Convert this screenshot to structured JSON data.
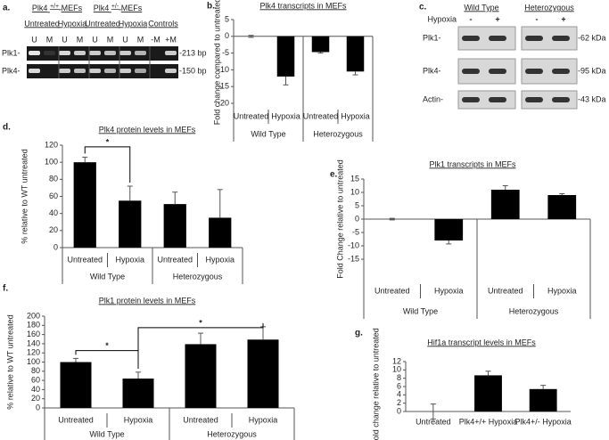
{
  "gels": {
    "a": {
      "panel_label": "a.",
      "headers": [
        {
          "gene": "Plk4",
          "genotype": "+/+",
          "suffix": "MEFs"
        },
        {
          "gene": "Plk4",
          "genotype": "+/-",
          "suffix": "MEFs"
        }
      ],
      "lane_groups": [
        "Untreated",
        "Hypoxia",
        "Untreated",
        "Hypoxia",
        "Controls"
      ],
      "lanes": [
        "U",
        "M",
        "U",
        "M",
        "U",
        "M",
        "U",
        "M",
        "-M",
        "+M"
      ],
      "rows": [
        "Plk1-",
        "Plk4-"
      ],
      "sizes": [
        "-213 bp",
        "-150 bp"
      ]
    },
    "c": {
      "panel_label": "c.",
      "groups": [
        "Wild Type",
        "Heterozygous"
      ],
      "condition": "Hypoxia",
      "lanes": [
        "-",
        "+",
        "-",
        "+"
      ],
      "rows": [
        "Plk1-",
        "Plk4-",
        "Actin-"
      ],
      "sizes": [
        "-62 kDa",
        "-95 kDa",
        "-43 kDa"
      ]
    }
  },
  "chart_data": [
    {
      "type": "bar",
      "panel_label": "b.",
      "title": "Plk4 transcripts in MEFs",
      "y_label": "Fold change compared to untreated",
      "categories": [
        "Untreated",
        "Hypoxia",
        "Untreated",
        "Hypoxia"
      ],
      "groups": [
        "Wild Type",
        "Heterozygous"
      ],
      "values": [
        0,
        -12,
        -4.7,
        -10.5
      ],
      "errors": [
        0.3,
        2.5,
        0.3,
        1
      ],
      "color": "#000000",
      "ylim": [
        -20,
        5
      ],
      "yticks": [
        5,
        0,
        -5,
        -10,
        -15,
        -20
      ]
    },
    {
      "type": "bar",
      "panel_label": "d.",
      "title": "Plk4 protein levels in MEFs",
      "y_label": "% relative to WT untreated",
      "categories": [
        "Untreated",
        "Hypoxia",
        "Untreated",
        "Hypoxia"
      ],
      "groups": [
        "Wild Type",
        "Heterozygous"
      ],
      "values": [
        100,
        55,
        51,
        35
      ],
      "errors": [
        6,
        17,
        14,
        33
      ],
      "color": "#000000",
      "ylim": [
        0,
        120
      ],
      "yticks": [
        0,
        20,
        40,
        60,
        80,
        100,
        120
      ],
      "annotations": [
        "*"
      ]
    },
    {
      "type": "bar",
      "panel_label": "e.",
      "title": "Plk1 transcripts in  MEFs",
      "y_label": "Fold Change relative to untreated",
      "categories": [
        "Untreated",
        "Hypoxia",
        "Untreated",
        "Hypoxia"
      ],
      "groups": [
        "Wild Type",
        "Heterozygous"
      ],
      "values": [
        0,
        -8,
        11,
        9
      ],
      "errors": [
        0.3,
        1.3,
        1.5,
        0.5
      ],
      "color": "#000000",
      "ylim": [
        -15,
        15
      ],
      "yticks": [
        15,
        10,
        5,
        0,
        -5,
        -10,
        -15
      ]
    },
    {
      "type": "bar",
      "panel_label": "f.",
      "title": "Plk1 protein levels in MEFs",
      "y_label": "% relative to WT untreated",
      "categories": [
        "Untreated",
        "Hypoxia",
        "Untreated",
        "Hypoxia"
      ],
      "groups": [
        "Wild Type",
        "Heterozygous"
      ],
      "values": [
        100,
        64,
        139,
        149
      ],
      "errors": [
        8,
        14,
        24,
        28
      ],
      "color": "#000000",
      "ylim": [
        0,
        200
      ],
      "yticks": [
        0,
        20,
        40,
        60,
        80,
        100,
        120,
        140,
        160,
        180,
        200
      ],
      "annotations": [
        "*",
        "*"
      ]
    },
    {
      "type": "bar",
      "panel_label": "g.",
      "title": "Hif1a transcript levels in MEFs",
      "y_label": "Fold change relative to untreated",
      "categories": [
        "Untreated",
        "Plk4+/+ Hypoxia",
        "Plk4+/- Hypoxia"
      ],
      "values": [
        0,
        8.7,
        5.4
      ],
      "errors": [
        1.8,
        1,
        0.9
      ],
      "color": "#000000",
      "ylim": [
        0,
        12
      ],
      "yticks": [
        0,
        2,
        4,
        6,
        8,
        10,
        12
      ]
    }
  ]
}
